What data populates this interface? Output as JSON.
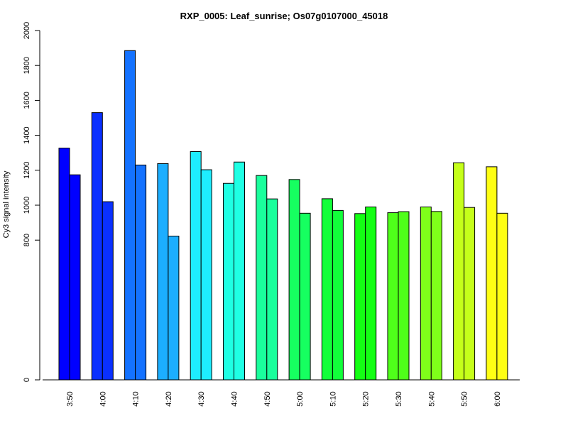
{
  "chart_data": {
    "type": "bar",
    "title": "RXP_0005: Leaf_sunrise; Os07g0107000_45018",
    "xlabel": "",
    "ylabel": "Cy3 signal intensity",
    "ylim": [
      0,
      2000
    ],
    "yticks": [
      0,
      800,
      1000,
      1200,
      1400,
      1600,
      1800,
      2000
    ],
    "grid": false,
    "legend": "none",
    "categories": [
      "3:50",
      "4:00",
      "4:10",
      "4:20",
      "4:30",
      "4:40",
      "4:50",
      "5:00",
      "5:10",
      "5:20",
      "5:30",
      "5:40",
      "5:50",
      "6:00"
    ],
    "colors": [
      "#0000FF",
      "#0A30FF",
      "#1472FF",
      "#1CAEFF",
      "#1EEDFF",
      "#1FFFE4",
      "#1AFF9C",
      "#16FF60",
      "#12FF3A",
      "#14FF14",
      "#4FFF1A",
      "#7FFF1A",
      "#C6FF1A",
      "#FFFF14"
    ],
    "series": [
      {
        "values": [
          1327,
          1530,
          1885,
          1238,
          1307,
          1125,
          1170,
          1147,
          1037,
          952,
          957,
          990,
          1243,
          1220
        ]
      },
      {
        "values": [
          1174,
          1020,
          1230,
          823,
          1203,
          1247,
          1036,
          954,
          970,
          990,
          963,
          964,
          987,
          954
        ]
      }
    ]
  }
}
